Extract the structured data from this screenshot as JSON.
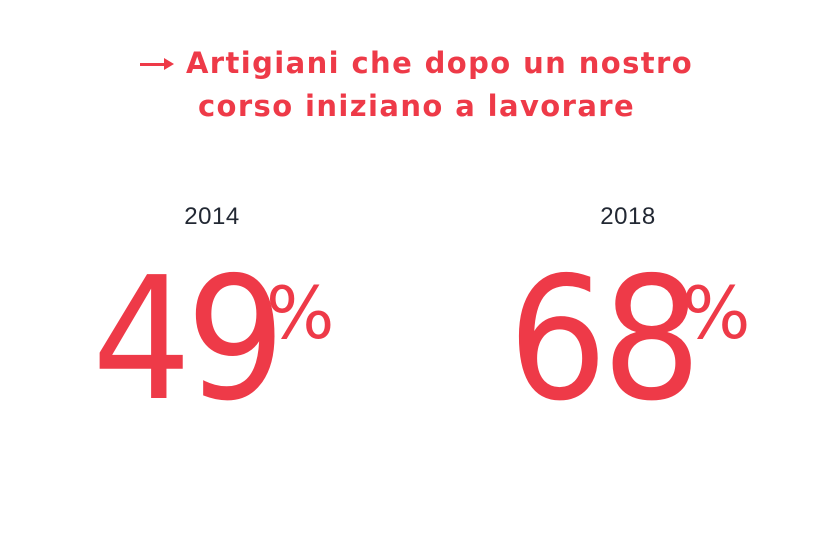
{
  "headline": {
    "arrow_icon": "arrow-right-icon",
    "line1": "Artigiani che dopo un nostro",
    "line2": "corso iniziano a lavorare"
  },
  "stats": [
    {
      "year": "2014",
      "value": "49",
      "unit": "%"
    },
    {
      "year": "2018",
      "value": "68",
      "unit": "%"
    }
  ],
  "colors": {
    "accent": "#ee3a48",
    "text": "#222833",
    "background": "#ffffff"
  }
}
